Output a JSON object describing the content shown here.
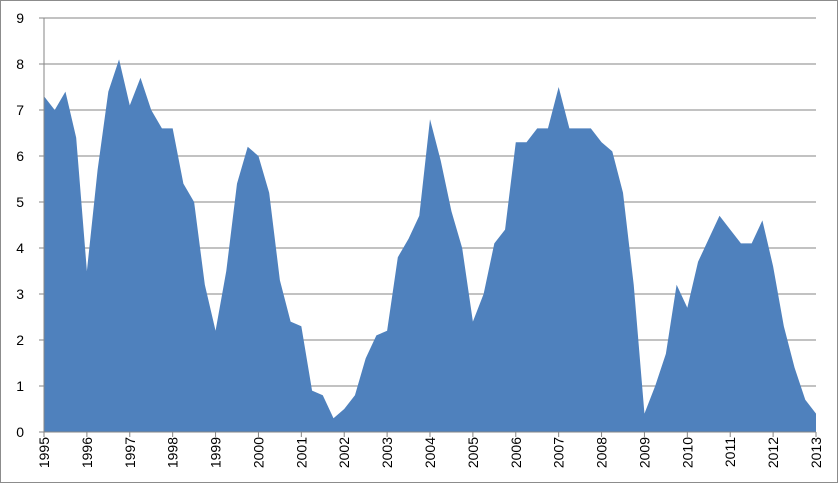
{
  "chart_data": {
    "type": "area",
    "title": "",
    "xlabel": "",
    "ylabel": "",
    "ylim": [
      0,
      9
    ],
    "xlim": [
      1995,
      2013
    ],
    "grid": true,
    "legend": "none",
    "color": "#4f81bd",
    "y_ticks": [
      "0",
      "1",
      "2",
      "3",
      "4",
      "5",
      "6",
      "7",
      "8",
      "9"
    ],
    "x_ticks": [
      "1995",
      "1996",
      "1997",
      "1998",
      "1999",
      "2000",
      "2001",
      "2002",
      "2003",
      "2004",
      "2005",
      "2006",
      "2007",
      "2008",
      "2009",
      "2010",
      "2011",
      "2012",
      "2013"
    ],
    "series": [
      {
        "x": [
          1995.0,
          1995.25,
          1995.5,
          1995.75,
          1996.0,
          1996.25,
          1996.5,
          1996.75,
          1997.0,
          1997.25,
          1997.5,
          1997.75,
          1998.0,
          1998.25,
          1998.5,
          1998.75,
          1999.0,
          1999.25,
          1999.5,
          1999.75,
          2000.0,
          2000.25,
          2000.5,
          2000.75,
          2001.0,
          2001.25,
          2001.5,
          2001.75,
          2002.0,
          2002.25,
          2002.5,
          2002.75,
          2003.0,
          2003.25,
          2003.5,
          2003.75,
          2004.0,
          2004.25,
          2004.5,
          2004.75,
          2005.0,
          2005.25,
          2005.5,
          2005.75,
          2006.0,
          2006.25,
          2006.5,
          2006.75,
          2007.0,
          2007.25,
          2007.5,
          2007.75,
          2008.0,
          2008.25,
          2008.5,
          2008.75,
          2009.0,
          2009.25,
          2009.5,
          2009.75,
          2010.0,
          2010.25,
          2010.5,
          2010.75,
          2011.0,
          2011.25,
          2011.5,
          2011.75,
          2012.0,
          2012.25,
          2012.5,
          2012.75,
          2013.0
        ],
        "values": [
          7.3,
          7.0,
          7.4,
          6.4,
          3.5,
          5.7,
          7.4,
          8.1,
          7.1,
          7.7,
          7.0,
          6.6,
          6.6,
          5.4,
          5.0,
          3.2,
          2.2,
          3.5,
          5.4,
          6.2,
          6.0,
          5.2,
          3.3,
          2.4,
          2.3,
          0.9,
          0.8,
          0.3,
          0.5,
          0.8,
          1.6,
          2.1,
          2.2,
          3.8,
          4.2,
          4.7,
          6.8,
          5.9,
          4.8,
          4.0,
          2.4,
          3.0,
          4.1,
          4.4,
          6.3,
          6.3,
          6.6,
          6.6,
          7.5,
          6.6,
          6.6,
          6.6,
          6.3,
          6.1,
          5.2,
          3.2,
          0.4,
          1.0,
          1.7,
          3.2,
          2.7,
          3.7,
          4.2,
          4.7,
          4.4,
          4.1,
          4.1,
          4.6,
          3.6,
          2.3,
          1.4,
          0.7,
          0.4
        ]
      }
    ]
  }
}
